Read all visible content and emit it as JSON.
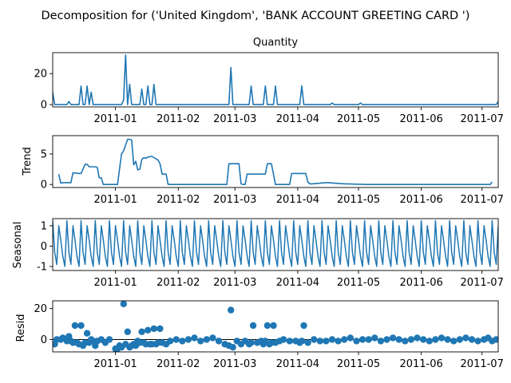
{
  "figure": {
    "suptitle": "Decomposition for ('United Kingdom', 'BANK ACCOUNT  GREETING  CARD ')",
    "line_color": "#1f77b4",
    "date_ticks": [
      "2011-01",
      "2011-02",
      "2011-03",
      "2011-04",
      "2011-05",
      "2011-06",
      "2011-07"
    ]
  },
  "chart_data": [
    {
      "type": "line",
      "title": "Quantity",
      "ylabel": "",
      "xlim": [
        "2010-12-01",
        "2011-07-09"
      ],
      "ylim": [
        -1.5,
        33.5
      ],
      "yticks": [
        0,
        20
      ],
      "x": [
        "2010-12-01",
        "2010-12-02",
        "2010-12-03",
        "2010-12-08",
        "2010-12-09",
        "2010-12-10",
        "2010-12-14",
        "2010-12-15",
        "2010-12-16",
        "2010-12-17",
        "2010-12-18",
        "2010-12-19",
        "2010-12-20",
        "2010-12-21",
        "2010-12-22",
        "2010-12-23",
        "2010-12-24",
        "2010-12-25",
        "2011-01-04",
        "2011-01-05",
        "2011-01-06",
        "2011-01-07",
        "2011-01-08",
        "2011-01-09",
        "2011-01-12",
        "2011-01-13",
        "2011-01-14",
        "2011-01-15",
        "2011-01-16",
        "2011-01-17",
        "2011-01-18",
        "2011-01-19",
        "2011-01-20",
        "2011-01-21",
        "2011-02-26",
        "2011-02-27",
        "2011-02-28",
        "2011-03-08",
        "2011-03-09",
        "2011-03-10",
        "2011-03-15",
        "2011-03-16",
        "2011-03-17",
        "2011-03-20",
        "2011-03-21",
        "2011-03-22",
        "2011-04-02",
        "2011-04-03",
        "2011-04-04",
        "2011-04-17",
        "2011-04-18",
        "2011-04-19",
        "2011-05-01",
        "2011-05-02",
        "2011-05-03",
        "2011-07-08",
        "2011-07-09"
      ],
      "y": [
        8,
        0,
        0,
        0,
        2,
        0,
        0,
        12,
        0,
        0,
        12,
        0,
        8,
        0,
        0,
        0,
        0,
        0,
        0,
        3,
        32,
        0,
        13,
        0,
        0,
        0,
        10,
        0,
        0,
        12,
        0,
        0,
        13,
        0,
        0,
        24,
        0,
        0,
        12,
        0,
        0,
        12,
        0,
        0,
        12,
        0,
        0,
        12,
        0,
        0,
        1,
        0,
        0,
        1,
        0,
        0,
        2
      ]
    },
    {
      "type": "line",
      "title": "",
      "ylabel": "Trend",
      "xlim": [
        "2010-12-01",
        "2011-07-09"
      ],
      "ylim": [
        -0.5,
        8.0
      ],
      "yticks": [
        0,
        5
      ],
      "x": [
        "2010-12-04",
        "2010-12-05",
        "2010-12-06",
        "2010-12-10",
        "2010-12-11",
        "2010-12-14",
        "2010-12-15",
        "2010-12-17",
        "2010-12-18",
        "2010-12-19",
        "2010-12-22",
        "2010-12-23",
        "2010-12-24",
        "2010-12-25",
        "2010-12-26",
        "2011-01-01",
        "2011-01-02",
        "2011-01-04",
        "2011-01-05",
        "2011-01-07",
        "2011-01-08",
        "2011-01-09",
        "2011-01-10",
        "2011-01-11",
        "2011-01-12",
        "2011-01-13",
        "2011-01-14",
        "2011-01-15",
        "2011-01-16",
        "2011-01-17",
        "2011-01-19",
        "2011-01-20",
        "2011-01-21",
        "2011-01-22",
        "2011-01-23",
        "2011-01-24",
        "2011-01-25",
        "2011-01-26",
        "2011-01-27",
        "2011-02-25",
        "2011-02-26",
        "2011-03-03",
        "2011-03-04",
        "2011-03-05",
        "2011-03-06",
        "2011-03-07",
        "2011-03-16",
        "2011-03-17",
        "2011-03-19",
        "2011-03-20",
        "2011-03-21",
        "2011-03-28",
        "2011-03-29",
        "2011-03-30",
        "2011-04-05",
        "2011-04-06",
        "2011-04-07",
        "2011-04-08",
        "2011-04-15",
        "2011-04-16",
        "2011-04-24",
        "2011-04-25",
        "2011-05-05",
        "2011-05-06",
        "2011-07-05",
        "2011-07-06"
      ],
      "y": [
        1.7,
        0.2,
        0.3,
        0.3,
        1.9,
        1.8,
        1.8,
        3.3,
        3.3,
        2.9,
        2.9,
        2.8,
        1.1,
        1.1,
        0.0,
        0.0,
        0.0,
        5.0,
        5.5,
        7.4,
        7.4,
        7.3,
        3.2,
        3.8,
        2.4,
        2.5,
        4.1,
        4.4,
        4.3,
        4.5,
        4.6,
        4.4,
        4.2,
        4.0,
        3.4,
        1.7,
        1.7,
        1.7,
        0.0,
        0.0,
        3.4,
        3.4,
        0.1,
        0.0,
        0.0,
        1.7,
        1.7,
        3.4,
        3.4,
        1.7,
        0.0,
        0.0,
        1.8,
        1.8,
        1.8,
        0.4,
        0.1,
        0.1,
        0.3,
        0.3,
        0.1,
        0.1,
        0.0,
        0.0,
        0.0,
        0.4
      ]
    },
    {
      "type": "line",
      "title": "",
      "ylabel": "Seasonal",
      "xlim": [
        "2010-12-01",
        "2011-07-09"
      ],
      "ylim": [
        -1.2,
        1.35
      ],
      "yticks": [
        -1,
        0,
        1
      ],
      "period_days": 7,
      "pattern": [
        1.25,
        -0.3,
        -0.9,
        1.0,
        0.3,
        -0.5,
        -1.0
      ]
    },
    {
      "type": "scatter",
      "title": "",
      "ylabel": "Resid",
      "xlim": [
        "2010-12-01",
        "2011-07-09"
      ],
      "ylim": [
        -8,
        25
      ],
      "yticks": [
        0,
        20
      ],
      "x": [
        "2010-12-02",
        "2010-12-03",
        "2010-12-05",
        "2010-12-06",
        "2010-12-08",
        "2010-12-09",
        "2010-12-10",
        "2010-12-11",
        "2010-12-12",
        "2010-12-13",
        "2010-12-14",
        "2010-12-15",
        "2010-12-16",
        "2010-12-17",
        "2010-12-18",
        "2010-12-19",
        "2010-12-20",
        "2010-12-21",
        "2010-12-22",
        "2010-12-23",
        "2010-12-25",
        "2010-12-27",
        "2010-12-29",
        "2011-01-01",
        "2011-01-02",
        "2011-01-03",
        "2011-01-04",
        "2011-01-05",
        "2011-01-06",
        "2011-01-07",
        "2011-01-08",
        "2011-01-09",
        "2011-01-10",
        "2011-01-11",
        "2011-01-12",
        "2011-01-13",
        "2011-01-14",
        "2011-01-15",
        "2011-01-16",
        "2011-01-17",
        "2011-01-18",
        "2011-01-19",
        "2011-01-20",
        "2011-01-21",
        "2011-01-22",
        "2011-01-23",
        "2011-01-24",
        "2011-01-26",
        "2011-01-28",
        "2011-01-31",
        "2011-02-03",
        "2011-02-06",
        "2011-02-09",
        "2011-02-12",
        "2011-02-15",
        "2011-02-18",
        "2011-02-21",
        "2011-02-24",
        "2011-02-26",
        "2011-02-27",
        "2011-02-28",
        "2011-03-02",
        "2011-03-04",
        "2011-03-06",
        "2011-03-08",
        "2011-03-09",
        "2011-03-10",
        "2011-03-12",
        "2011-03-14",
        "2011-03-15",
        "2011-03-16",
        "2011-03-17",
        "2011-03-18",
        "2011-03-19",
        "2011-03-20",
        "2011-03-21",
        "2011-03-23",
        "2011-03-25",
        "2011-03-28",
        "2011-03-31",
        "2011-04-02",
        "2011-04-03",
        "2011-04-04",
        "2011-04-06",
        "2011-04-09",
        "2011-04-12",
        "2011-04-15",
        "2011-04-18",
        "2011-04-21",
        "2011-04-24",
        "2011-04-27",
        "2011-04-30",
        "2011-05-03",
        "2011-05-06",
        "2011-05-09",
        "2011-05-12",
        "2011-05-15",
        "2011-05-18",
        "2011-05-21",
        "2011-05-24",
        "2011-05-27",
        "2011-05-30",
        "2011-06-02",
        "2011-06-05",
        "2011-06-08",
        "2011-06-11",
        "2011-06-14",
        "2011-06-17",
        "2011-06-20",
        "2011-06-23",
        "2011-06-26",
        "2011-06-29",
        "2011-07-02",
        "2011-07-04",
        "2011-07-06",
        "2011-07-08"
      ],
      "y": [
        -3,
        0,
        0,
        1,
        -1,
        2,
        -1,
        -2,
        9,
        -2,
        -3,
        9,
        -4,
        -2,
        4,
        -2,
        0,
        -1,
        -4,
        -1,
        0,
        -2,
        0,
        -6,
        -6,
        -4,
        -5,
        23,
        -3,
        5,
        -5,
        -4,
        -3,
        -4,
        -1,
        -2,
        5,
        -2,
        -3,
        6,
        -3,
        -3,
        7,
        -3,
        -2,
        7,
        -2,
        -3,
        -1,
        0,
        -1,
        0,
        1,
        -1,
        0,
        1,
        -1,
        -3,
        -4,
        19,
        -5,
        -1,
        -3,
        -1,
        -3,
        -2,
        9,
        -2,
        -1,
        -3,
        -1,
        9,
        -3,
        -2,
        9,
        -2,
        -1,
        0,
        -1,
        -1,
        -2,
        -1,
        9,
        -2,
        0,
        -1,
        -1,
        0,
        -1,
        0,
        1,
        -1,
        0,
        0,
        1,
        -1,
        0,
        1,
        0,
        -1,
        0,
        1,
        0,
        -1,
        0,
        1,
        0,
        -1,
        0,
        1,
        0,
        -1,
        0,
        1,
        -1,
        0
      ]
    }
  ]
}
